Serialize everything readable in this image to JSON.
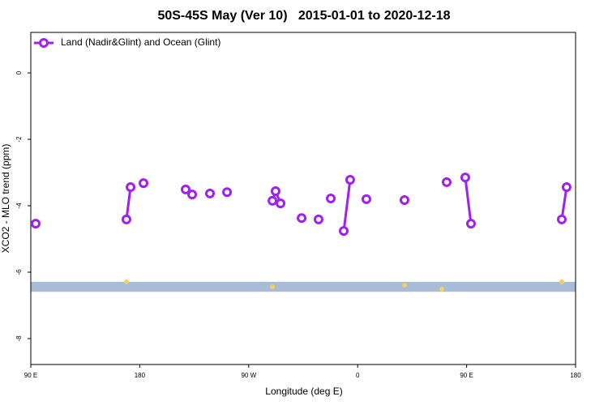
{
  "chart_data": {
    "type": "line",
    "title": "50S-45S May (Ver 10)   2015-01-01 to 2020-12-18",
    "x_label": "Longitude (deg E)",
    "y_label": "XCO2 - MLO trend (ppm)",
    "xlim": [
      90,
      540
    ],
    "xticks": [
      {
        "value": 90,
        "label": "90 E"
      },
      {
        "value": 180,
        "label": "180"
      },
      {
        "value": 270,
        "label": "90 W"
      },
      {
        "value": 360,
        "label": "0"
      },
      {
        "value": 450,
        "label": "90 E"
      },
      {
        "value": 540,
        "label": "180"
      }
    ],
    "ylim": [
      -8.78,
      1.22
    ],
    "yticks": [
      0,
      -2,
      -4,
      -6,
      -8
    ],
    "legend": "top-left",
    "series": [
      {
        "name": "Land (Nadir&Glint) and Ocean (Glint)",
        "color": "#a020f0",
        "x": [
          94.0,
          null,
          169.0,
          172.4,
          null,
          183.1,
          null,
          217.9,
          null,
          223.3,
          null,
          238.0,
          null,
          252.1,
          null,
          289.6,
          292.2,
          296.3,
          null,
          313.7,
          null,
          327.7,
          null,
          337.8,
          null,
          348.5,
          353.8,
          null,
          367.2,
          null,
          398.7,
          null,
          433.5,
          null,
          448.9,
          453.6,
          null,
          528.6,
          532.6
        ],
        "values": [
          -4.54,
          null,
          -4.41,
          -3.44,
          null,
          -3.32,
          null,
          -3.51,
          null,
          -3.66,
          null,
          -3.63,
          null,
          -3.59,
          null,
          -3.85,
          -3.56,
          -3.93,
          null,
          -4.37,
          null,
          -4.41,
          null,
          -3.78,
          null,
          -4.76,
          -3.22,
          null,
          -3.8,
          null,
          -3.83,
          null,
          -3.29,
          null,
          -3.15,
          -4.54,
          null,
          -4.41,
          -3.44
        ]
      }
    ],
    "band": {
      "values": [
        -6.59,
        -6.29
      ],
      "color": "#a8bcd8"
    },
    "markers": {
      "color": "#f5d060",
      "x": [
        169.0,
        289.6,
        398.7,
        429.5,
        528.6
      ],
      "values": [
        -6.29,
        -6.44,
        -6.39,
        -6.51,
        -6.29
      ]
    }
  }
}
